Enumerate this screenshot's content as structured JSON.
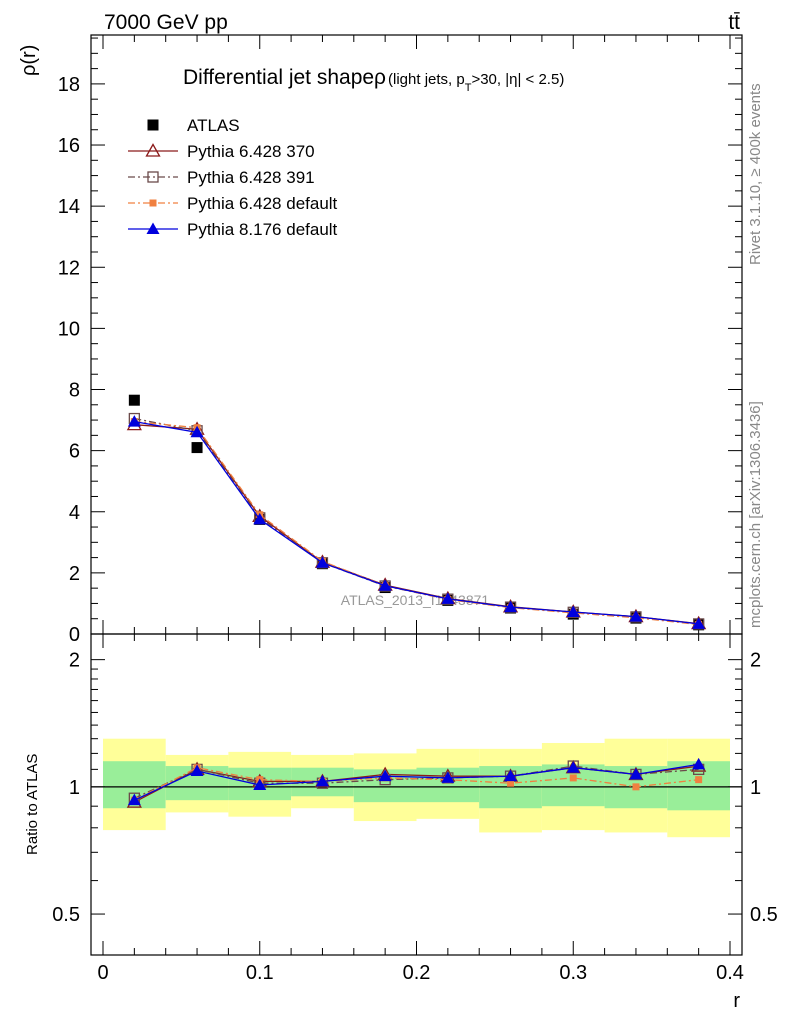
{
  "header": {
    "left": "7000 GeV pp",
    "right": "tt̄"
  },
  "side_labels": {
    "rivet": "Rivet 3.1.10, ≥ 400k events",
    "mcplots": "mcplots.cern.ch [arXiv:1306.3436]"
  },
  "chart_data": [
    {
      "type": "scatter",
      "panel": "main",
      "title_main": "Differential jet shapeρ",
      "title_sub_a": "(light jets, p",
      "title_sub_b": "T",
      "title_sub_c": ">30, |η| < 2.5)",
      "watermark": "ATLAS_2013_I1243871",
      "ylabel": "ρ(r)",
      "xlim": [
        0,
        0.4
      ],
      "ylim": [
        0,
        19.6
      ],
      "yticks": [
        0,
        2,
        4,
        6,
        8,
        10,
        12,
        14,
        16,
        18
      ],
      "ytick_labels": [
        "0",
        "2",
        "4",
        "6",
        "8",
        "10",
        "12",
        "14",
        "16",
        "18"
      ],
      "x": [
        0.02,
        0.06,
        0.1,
        0.14,
        0.18,
        0.22,
        0.26,
        0.3,
        0.34,
        0.38
      ],
      "series": [
        {
          "name": "ATLAS",
          "color": "#000000",
          "marker": "square",
          "line": "none",
          "values": [
            7.65,
            6.1,
            3.75,
            2.3,
            1.52,
            1.1,
            0.85,
            0.65,
            0.52,
            0.3
          ]
        },
        {
          "name": "Pythia 6.428 370",
          "color": "#8b1a1a",
          "marker": "triangle-open",
          "line": "solid",
          "values": [
            6.85,
            6.7,
            3.85,
            2.35,
            1.6,
            1.16,
            0.89,
            0.72,
            0.57,
            0.34
          ]
        },
        {
          "name": "Pythia 6.428 391",
          "color": "#6b4a4a",
          "marker": "square-open",
          "line": "dashdot",
          "values": [
            7.05,
            6.65,
            3.8,
            2.33,
            1.57,
            1.14,
            0.88,
            0.71,
            0.56,
            0.33
          ]
        },
        {
          "name": "Pythia 6.428 default",
          "color": "#f08040",
          "marker": "square-small",
          "line": "dashdot",
          "values": [
            6.95,
            6.75,
            3.9,
            2.38,
            1.58,
            1.13,
            0.86,
            0.69,
            0.53,
            0.31
          ]
        },
        {
          "name": "Pythia 8.176 default",
          "color": "#0000dd",
          "marker": "triangle",
          "line": "solid",
          "values": [
            6.95,
            6.6,
            3.75,
            2.33,
            1.58,
            1.15,
            0.88,
            0.72,
            0.57,
            0.33
          ]
        }
      ]
    },
    {
      "type": "scatter",
      "panel": "ratio",
      "ylabel": "Ratio to ATLAS",
      "xlabel": "r",
      "scale": "log",
      "xlim": [
        0,
        0.4
      ],
      "ylim": [
        0.4,
        2.3
      ],
      "yticks": [
        0.5,
        1,
        2
      ],
      "ytick_labels": [
        "0.5",
        "1",
        "2"
      ],
      "xticks": [
        0,
        0.1,
        0.2,
        0.3,
        0.4
      ],
      "xtick_labels": [
        "0",
        "0.1",
        "0.2",
        "0.3",
        "0.4"
      ],
      "x": [
        0.02,
        0.06,
        0.1,
        0.14,
        0.18,
        0.22,
        0.26,
        0.3,
        0.34,
        0.38
      ],
      "bins": [
        [
          0,
          0.04
        ],
        [
          0.04,
          0.08
        ],
        [
          0.08,
          0.12
        ],
        [
          0.12,
          0.16
        ],
        [
          0.16,
          0.2
        ],
        [
          0.2,
          0.24
        ],
        [
          0.24,
          0.28
        ],
        [
          0.28,
          0.32
        ],
        [
          0.32,
          0.36
        ],
        [
          0.36,
          0.4
        ]
      ],
      "band_stat": [
        [
          0.89,
          1.15
        ],
        [
          0.93,
          1.12
        ],
        [
          0.93,
          1.11
        ],
        [
          0.95,
          1.11
        ],
        [
          0.92,
          1.1
        ],
        [
          0.92,
          1.11
        ],
        [
          0.89,
          1.12
        ],
        [
          0.9,
          1.13
        ],
        [
          0.89,
          1.12
        ],
        [
          0.88,
          1.15
        ]
      ],
      "band_total": [
        [
          0.79,
          1.3
        ],
        [
          0.87,
          1.19
        ],
        [
          0.85,
          1.21
        ],
        [
          0.89,
          1.19
        ],
        [
          0.83,
          1.2
        ],
        [
          0.84,
          1.23
        ],
        [
          0.78,
          1.23
        ],
        [
          0.79,
          1.27
        ],
        [
          0.78,
          1.3
        ],
        [
          0.76,
          1.3
        ]
      ],
      "series": [
        {
          "name": "Pythia 6.428 370",
          "color": "#8b1a1a",
          "marker": "triangle-open",
          "line": "solid",
          "values": [
            0.92,
            1.1,
            1.03,
            1.03,
            1.07,
            1.06,
            1.06,
            1.11,
            1.07,
            1.12
          ]
        },
        {
          "name": "Pythia 6.428 391",
          "color": "#6b4a4a",
          "marker": "square-open",
          "line": "dashdot",
          "values": [
            0.94,
            1.1,
            1.02,
            1.02,
            1.04,
            1.05,
            1.06,
            1.12,
            1.07,
            1.1
          ]
        },
        {
          "name": "Pythia 6.428 default",
          "color": "#f08040",
          "marker": "square-small",
          "line": "dashdot",
          "values": [
            0.93,
            1.11,
            1.04,
            1.03,
            1.05,
            1.04,
            1.02,
            1.05,
            1.0,
            1.04
          ]
        },
        {
          "name": "Pythia 8.176 default",
          "color": "#0000dd",
          "marker": "triangle",
          "line": "solid",
          "values": [
            0.93,
            1.09,
            1.01,
            1.03,
            1.06,
            1.05,
            1.06,
            1.11,
            1.07,
            1.13
          ]
        }
      ]
    }
  ]
}
